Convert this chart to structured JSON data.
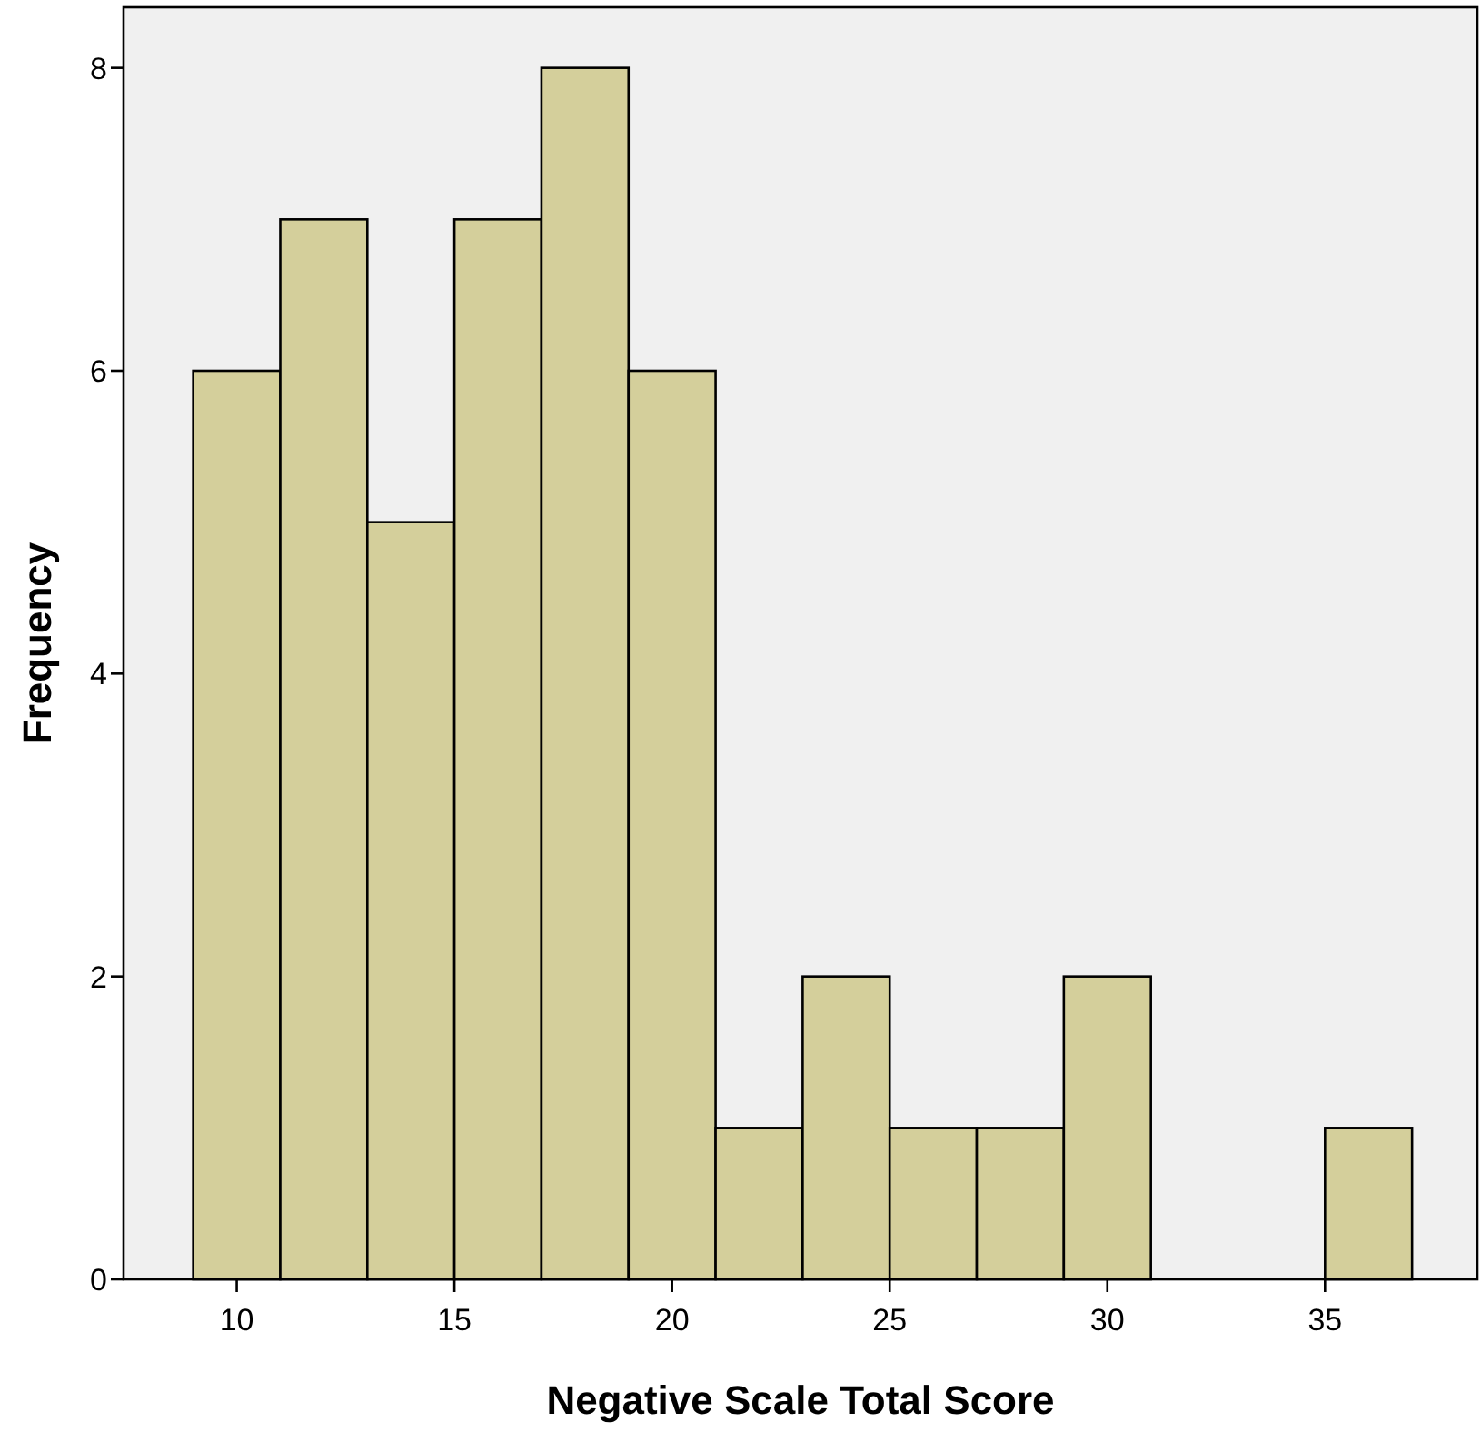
{
  "chart_data": {
    "type": "histogram",
    "xlabel": "Negative Scale Total Score",
    "ylabel": "Frequency",
    "bins": [
      9,
      11,
      13,
      15,
      17,
      19,
      21,
      23,
      25,
      27,
      29,
      31,
      33,
      35,
      37
    ],
    "values": [
      6,
      7,
      5,
      7,
      8,
      6,
      1,
      2,
      1,
      1,
      2,
      0,
      0,
      1
    ],
    "color": "#d4cf9b",
    "xlim": [
      7.4,
      38.5
    ],
    "xticks": [
      10,
      15,
      20,
      25,
      30,
      35
    ],
    "ylim": [
      0,
      8.4
    ],
    "yticks": [
      0,
      2,
      4,
      6,
      8
    ]
  }
}
